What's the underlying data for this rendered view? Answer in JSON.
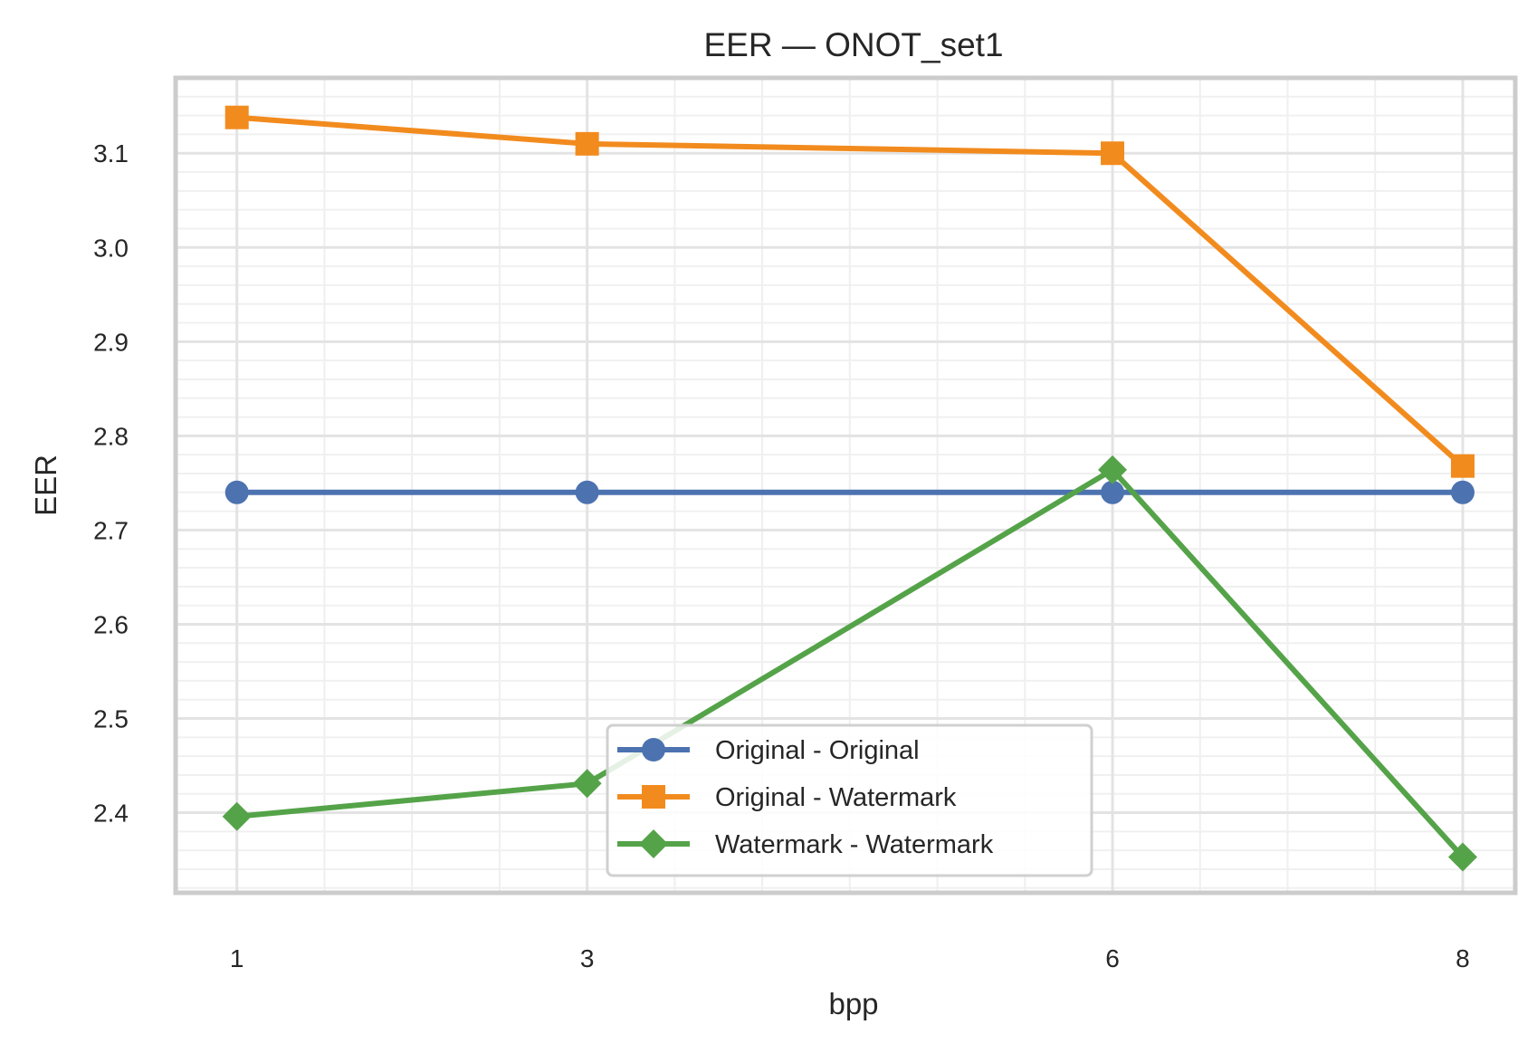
{
  "chart_data": {
    "type": "line",
    "title": "EER — ONOT_set1",
    "xlabel": "bpp",
    "ylabel": "EER",
    "x": [
      1,
      3,
      6,
      8
    ],
    "xticks": [
      "1",
      "3",
      "6",
      "8"
    ],
    "yticks": [
      "2.4",
      "2.5",
      "2.6",
      "2.7",
      "2.8",
      "2.9",
      "3.0",
      "3.1"
    ],
    "ylim": [
      2.315,
      3.18
    ],
    "xlim": [
      0.65,
      8.3
    ],
    "grid": true,
    "legend_position": "lower-center",
    "series": [
      {
        "name": "Original - Original",
        "values": [
          2.74,
          2.74,
          2.74,
          2.74
        ],
        "color": "#4c72b0",
        "marker": "circle"
      },
      {
        "name": "Original - Watermark",
        "values": [
          3.138,
          3.11,
          3.1,
          2.768
        ],
        "color": "#f28b1e",
        "marker": "square"
      },
      {
        "name": "Watermark - Watermark",
        "values": [
          2.396,
          2.431,
          2.764,
          2.353
        ],
        "color": "#55a349",
        "marker": "diamond"
      }
    ]
  }
}
